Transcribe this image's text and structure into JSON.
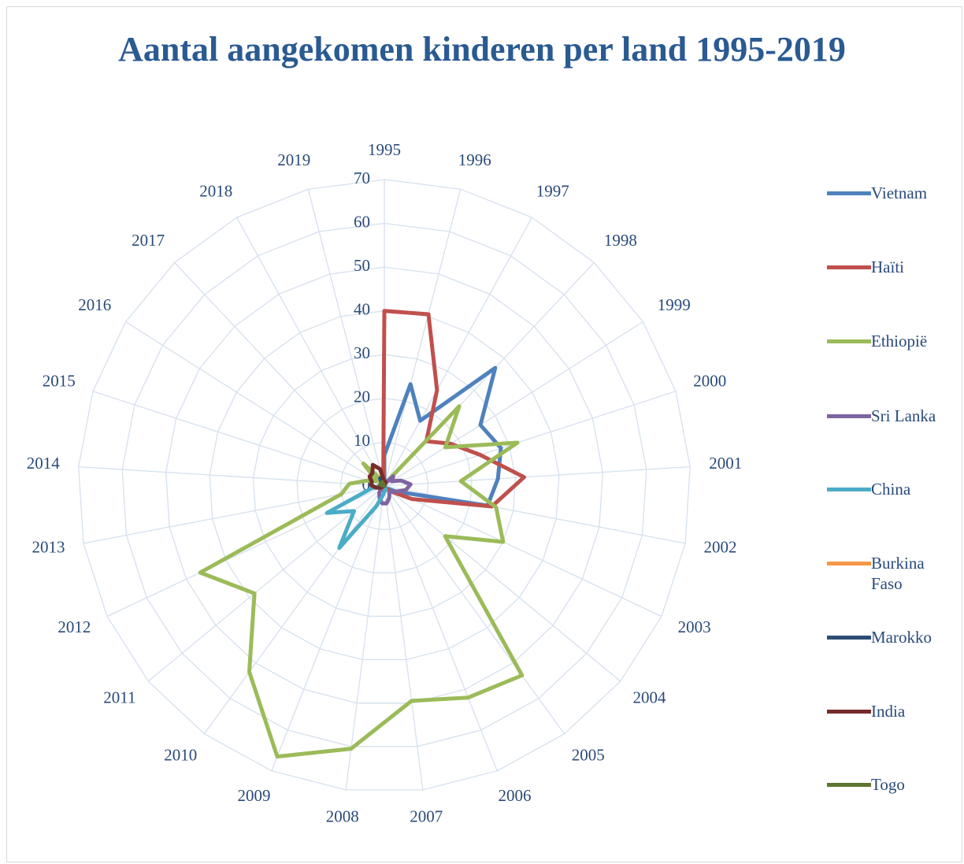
{
  "chart_data": {
    "type": "radar",
    "title": "Aantal aangekomen kinderen per land 1995-2019",
    "categories": [
      "1995",
      "1996",
      "1997",
      "1998",
      "1999",
      "2000",
      "2001",
      "2002",
      "2003",
      "2004",
      "2005",
      "2006",
      "2007",
      "2008",
      "2009",
      "2010",
      "2011",
      "2012",
      "2013",
      "2014",
      "2015",
      "2016",
      "2017",
      "2018",
      "2019"
    ],
    "ylim": [
      0,
      70
    ],
    "yticks": [
      0,
      10,
      20,
      30,
      40,
      50,
      60,
      70
    ],
    "grid": true,
    "legend": "right",
    "series": [
      {
        "name": "Vietnam",
        "color": "#4f81bd",
        "values": [
          7,
          24,
          17,
          37,
          26,
          28,
          26,
          24,
          3,
          1,
          1,
          0,
          1,
          1,
          1,
          1,
          0,
          1,
          1,
          0,
          0,
          1,
          1,
          1,
          0
        ]
      },
      {
        "name": "Haïti",
        "color": "#c0504d",
        "values": [
          40,
          40.5,
          25,
          14,
          18,
          23,
          32,
          25,
          7,
          2,
          1,
          1,
          0,
          0,
          0,
          1,
          0,
          0,
          0,
          0,
          0,
          0,
          1,
          1,
          1
        ]
      },
      {
        "name": "Ethiopië",
        "color": "#9bbb59",
        "values": [
          1,
          1,
          1,
          25,
          16.5,
          32,
          17.5,
          26,
          30,
          18,
          53.5,
          52,
          49.5,
          60.5,
          66.5,
          52.5,
          38.5,
          46.5,
          10,
          8,
          4,
          2,
          7,
          2,
          1
        ]
      },
      {
        "name": "Sri Lanka",
        "color": "#8064a2",
        "values": [
          0,
          0,
          1,
          3,
          2,
          4,
          6,
          5,
          3,
          2,
          2,
          3,
          4,
          4,
          3,
          2,
          1,
          1,
          1,
          0,
          0,
          0,
          0,
          0,
          0
        ]
      },
      {
        "name": "China",
        "color": "#4bacc6",
        "values": [
          0,
          0,
          0,
          0,
          0,
          0,
          0,
          0,
          0,
          0,
          0,
          1,
          1,
          2,
          5,
          17.5,
          9,
          14.5,
          3,
          1,
          1,
          0,
          0,
          0,
          0
        ]
      },
      {
        "name": "Burkina Faso",
        "color": "#f79646",
        "values": [
          0,
          0,
          0,
          0,
          0,
          0,
          0,
          0,
          0,
          0,
          0,
          0,
          0,
          0,
          0,
          0,
          0,
          0,
          1,
          1,
          1,
          1,
          0,
          0,
          0
        ]
      },
      {
        "name": "Marokko",
        "color": "#2c4d75",
        "values": [
          0,
          0,
          0,
          0,
          0,
          0,
          0,
          0,
          0,
          0,
          0,
          0,
          0,
          0,
          0,
          0,
          0,
          0,
          1,
          1,
          1,
          1,
          1,
          2,
          1
        ]
      },
      {
        "name": "India",
        "color": "#772c2a",
        "values": [
          1,
          1,
          0,
          0,
          0,
          0,
          0,
          0,
          0,
          0,
          0,
          0,
          0,
          0,
          0,
          0,
          0,
          1,
          2,
          3,
          3,
          4,
          4,
          5.5,
          4
        ]
      },
      {
        "name": "Togo",
        "color": "#5f7530",
        "values": [
          0,
          0,
          0,
          0,
          0,
          0,
          0,
          0,
          0,
          0,
          0,
          0,
          0,
          0,
          0,
          0,
          0,
          0,
          0,
          0,
          1,
          1,
          1,
          1,
          0
        ]
      }
    ]
  }
}
